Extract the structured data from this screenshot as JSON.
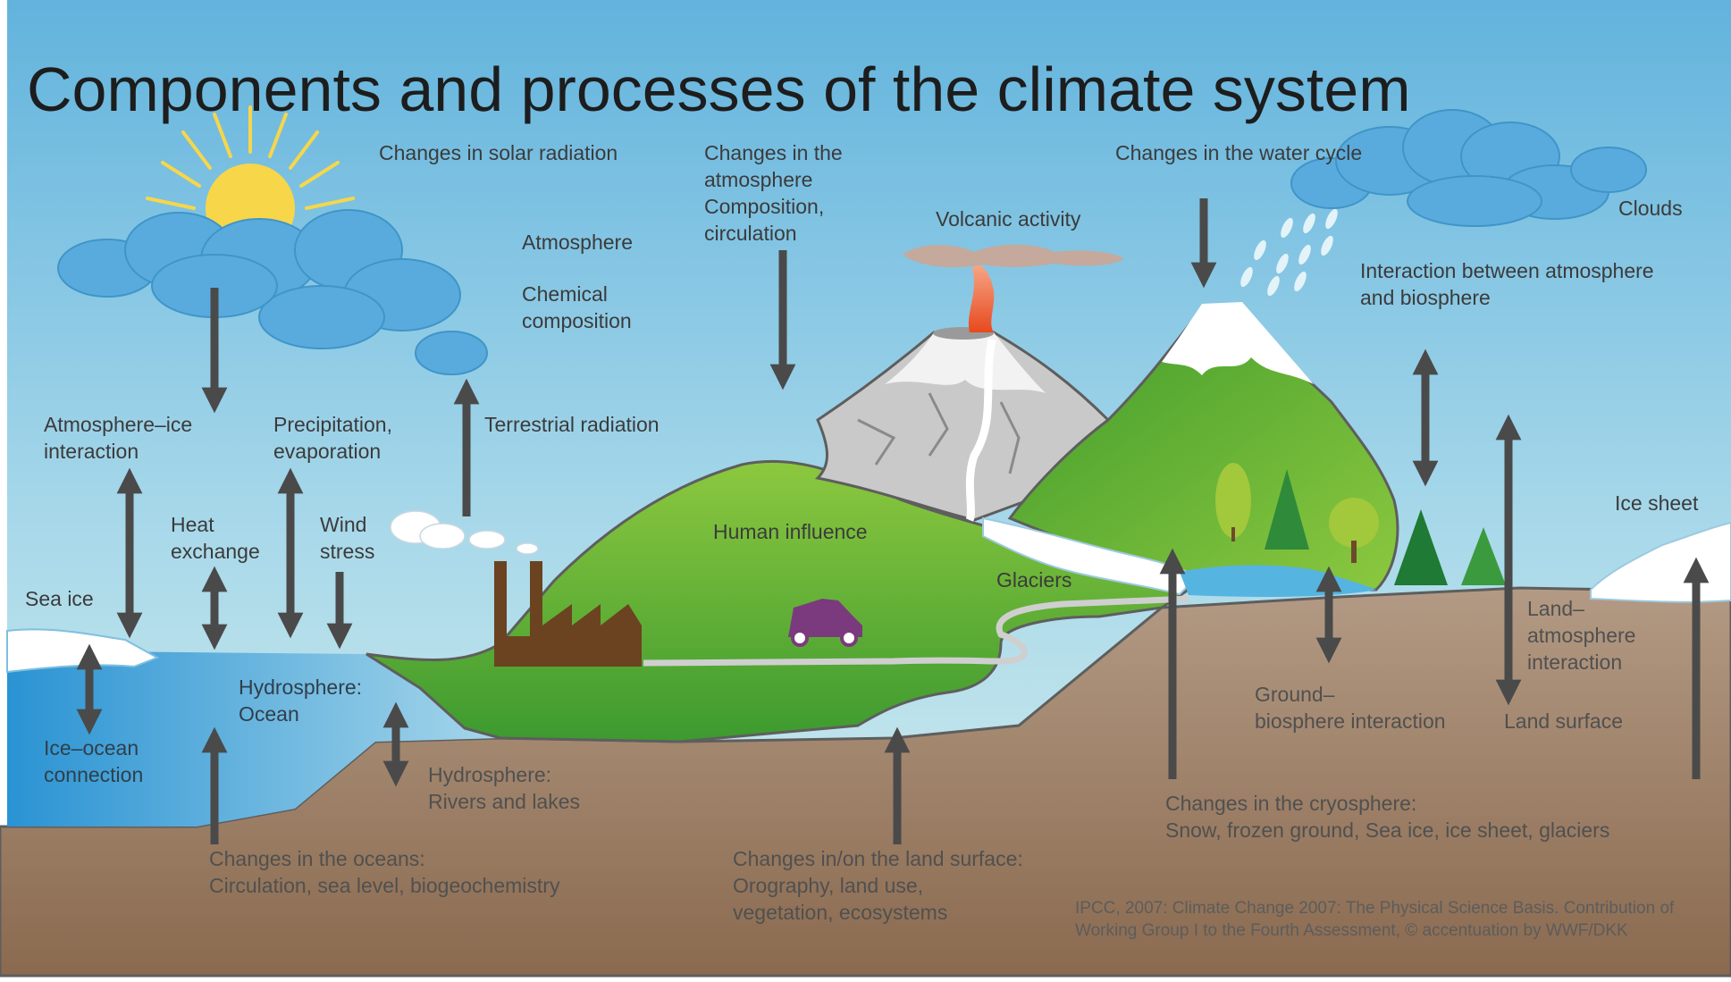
{
  "title": "Components and processes of the climate system",
  "labels": {
    "solar": "Changes in solar radiation",
    "atmosphere_changes": "Changes in the\natmosphere\nComposition,\ncirculation",
    "water_cycle": "Changes in the water cycle",
    "clouds": "Clouds",
    "volcanic": "Volcanic activity",
    "atmosphere": "Atmosphere",
    "chemical": "Chemical\ncomposition",
    "atm_biosphere": "Interaction between atmosphere\nand biosphere",
    "atm_ice": "Atmosphere–ice\ninteraction",
    "precip": "Precipitation,\nevaporation",
    "terrestrial": "Terrestrial radiation",
    "heat": "Heat\nexchange",
    "wind": "Wind\nstress",
    "human": "Human influence",
    "sea_ice": "Sea ice",
    "ice_sheet": "Ice sheet",
    "glaciers": "Glaciers",
    "land_atm": "Land–\natmosphere\ninteraction",
    "ground_bio": "Ground–\nbiosphere interaction",
    "land_surface": "Land surface",
    "hydro_ocean": "Hydrosphere:\nOcean",
    "ice_ocean": "Ice–ocean\nconnection",
    "hydro_rivers": "Hydrosphere:\nRivers and lakes",
    "cryosphere": "Changes in the cryosphere:\nSnow, frozen ground, Sea ice, ice sheet, glaciers",
    "oceans": "Changes in the oceans:\nCirculation, sea level, biogeochemistry",
    "land_changes": "Changes in/on the land surface:\nOrography, land use,\nvegetation, ecosystems"
  },
  "credit": "IPCC, 2007: Climate Change 2007: The Physical Science Basis. Contribution of\nWorking Group I to the Fourth Assessment, © accentuation by WWF/DKK",
  "colors": {
    "sky_top": "#66b6de",
    "sky_bottom": "#cbe9ec",
    "ground": "#9c7c61",
    "ocean": "#3c9fd8",
    "grass": "#6fb43a",
    "arrow": "#4a4a4a",
    "sun": "#f7d64a",
    "cloud": "#5aabdd",
    "factory": "#6b4320",
    "car": "#7b3a7d"
  }
}
